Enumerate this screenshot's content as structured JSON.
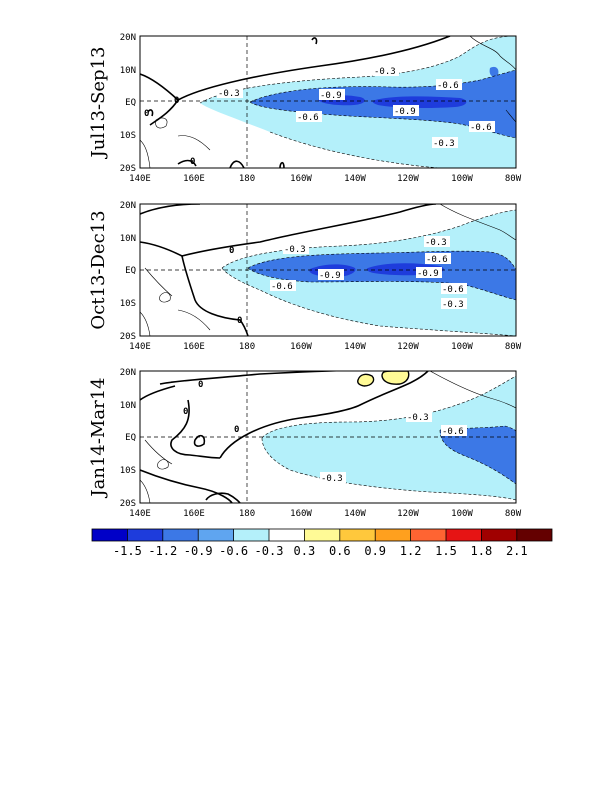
{
  "colors": {
    "c_neg_1_5": "#0000c8",
    "c_neg_1_2": "#1e3cdc",
    "c_neg_0_9": "#3c78e6",
    "c_neg_0_6": "#5fa5f0",
    "c_neg_0_3": "#b4f0fa",
    "c_zero": "#ffffff",
    "c_pos_0_3": "#fffa96",
    "c_pos_0_6": "#ffc83c",
    "c_pos_0_9": "#ffa01e",
    "c_pos_1_2": "#ff6432",
    "c_pos_1_5": "#e61414",
    "c_pos_1_8": "#a00000",
    "c_pos_2_1": "#640000"
  },
  "axes": {
    "x_ticks": [
      "140E",
      "160E",
      "180",
      "160W",
      "140W",
      "120W",
      "100W",
      "80W"
    ],
    "y_ticks": [
      "20N",
      "10N",
      "EQ",
      "10S",
      "20S"
    ]
  },
  "panels": [
    {
      "label": "Jul13-Sep13",
      "contour_labels": [
        "-0.3",
        "-0.6",
        "-0.9",
        "-0.9",
        "-0.6",
        "-0.6",
        "-0.3",
        "-0.3",
        "0",
        "0",
        "0"
      ]
    },
    {
      "label": "Oct13-Dec13",
      "contour_labels": [
        "-0.3",
        "-0.3",
        "-0.6",
        "-0.9",
        "-0.9",
        "-0.6",
        "-0.6",
        "-0.3",
        "0",
        "0"
      ]
    },
    {
      "label": "Jan14-Mar14",
      "contour_labels": [
        "-0.3",
        "-0.6",
        "-0.3",
        "0",
        "0",
        "0"
      ]
    }
  ],
  "colorbar": {
    "labels": [
      "-1.5",
      "-1.2",
      "-0.9",
      "-0.6",
      "-0.3",
      "0.3",
      "0.6",
      "0.9",
      "1.2",
      "1.5",
      "1.8",
      "2.1"
    ]
  }
}
